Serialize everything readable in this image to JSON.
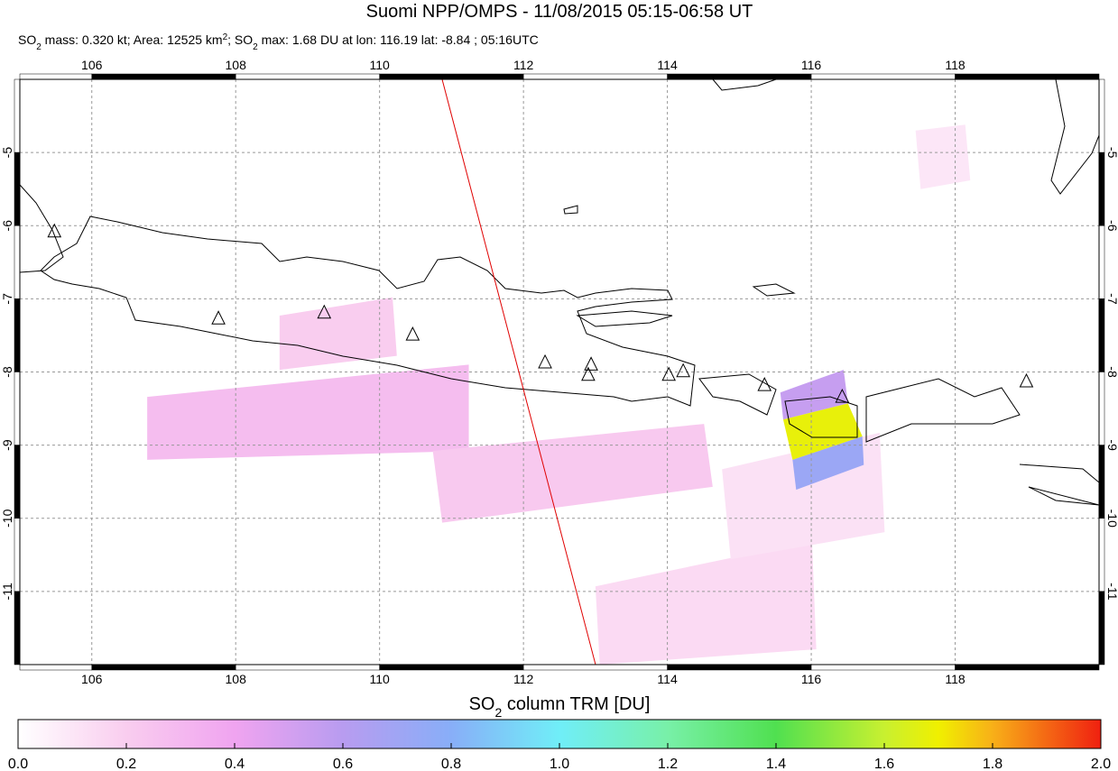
{
  "chart_data": {
    "type": "map",
    "title": "Suomi NPP/OMPS - 11/08/2015 05:15-06:58 UT",
    "subtitle": [
      "SO",
      "2",
      " mass: 0.320 kt; Area: 12525 km",
      "2",
      "; SO",
      "2",
      " max: 1.68 DU at lon: 116.19 lat: -8.84 ; 05:16UTC"
    ],
    "xlim": [
      105,
      120
    ],
    "ylim": [
      -12,
      -4
    ],
    "xticks": [
      106,
      108,
      110,
      112,
      114,
      116,
      118
    ],
    "yticks": [
      -5,
      -6,
      -7,
      -8,
      -9,
      -10,
      -11
    ],
    "grid": true,
    "pixels": [
      {
        "lon": [
          106.77,
          111.24,
          111.24,
          106.77
        ],
        "lat": [
          -8.34,
          -7.9,
          -9.08,
          -9.2
        ],
        "value": 0.28
      },
      {
        "lon": [
          108.61,
          110.18,
          110.24,
          108.61
        ],
        "lat": [
          -7.23,
          -6.98,
          -7.78,
          -7.97
        ],
        "value": 0.2
      },
      {
        "lon": [
          110.74,
          114.51,
          114.63,
          110.87
        ],
        "lat": [
          -9.08,
          -8.71,
          -9.57,
          -10.06
        ],
        "value": 0.22
      },
      {
        "lon": [
          117.45,
          118.14,
          118.21,
          117.52
        ],
        "lat": [
          -4.7,
          -4.62,
          -5.38,
          -5.5
        ],
        "value": 0.1
      },
      {
        "lon": [
          113.0,
          116.01,
          116.07,
          113.06
        ],
        "lat": [
          -10.93,
          -10.31,
          -11.79,
          -12.0
        ],
        "value": 0.15
      },
      {
        "lon": [
          114.76,
          116.95,
          117.02,
          114.88
        ],
        "lat": [
          -9.33,
          -8.83,
          -10.19,
          -10.56
        ],
        "value": 0.12
      },
      {
        "lon": [
          115.57,
          116.45,
          116.51,
          115.61
        ],
        "lat": [
          -8.28,
          -7.97,
          -8.43,
          -8.65
        ],
        "value": 0.55
      },
      {
        "lon": [
          115.74,
          116.71,
          116.73,
          115.79
        ],
        "lat": [
          -9.2,
          -8.88,
          -9.27,
          -9.61
        ],
        "value": 0.72
      },
      {
        "lon": [
          115.61,
          116.51,
          116.71,
          115.74
        ],
        "lat": [
          -8.65,
          -8.43,
          -8.88,
          -9.2
        ],
        "value": 1.68
      }
    ],
    "volcanoes": {
      "lon": [
        105.48,
        107.76,
        109.23,
        110.46,
        112.3,
        112.94,
        112.9,
        114.02,
        114.22,
        115.35,
        116.43,
        118.99
      ],
      "lat": [
        -6.08,
        -7.27,
        -7.19,
        -7.49,
        -7.87,
        -7.9,
        -8.04,
        -8.04,
        -7.99,
        -8.18,
        -8.34,
        -8.13
      ]
    },
    "colorbar": {
      "title": [
        "SO",
        "2",
        " column TRM [DU]"
      ],
      "lim": [
        0,
        2
      ],
      "ticks": [
        {
          "value": 0,
          "label": "0.0"
        },
        {
          "value": 0.2,
          "label": "0.2"
        },
        {
          "value": 0.4,
          "label": "0.4"
        },
        {
          "value": 0.6,
          "label": "0.6"
        },
        {
          "value": 0.8,
          "label": "0.8"
        },
        {
          "value": 1,
          "label": "1.0"
        },
        {
          "value": 1.2,
          "label": "1.2"
        },
        {
          "value": 1.4,
          "label": "1.4"
        },
        {
          "value": 1.6,
          "label": "1.6"
        },
        {
          "value": 1.8,
          "label": "1.8"
        },
        {
          "value": 2,
          "label": "2.0"
        }
      ],
      "stops": [
        0,
        0.2,
        0.4,
        0.6,
        0.8,
        1.0,
        1.2,
        1.4,
        1.6,
        1.7,
        1.8,
        2.0
      ],
      "colors": [
        "#ffffff",
        "#f9cdef",
        "#f0a4f0",
        "#b89cf0",
        "#88aef8",
        "#70eef8",
        "#78f0a8",
        "#50e050",
        "#c8f030",
        "#f0f000",
        "#f8b018",
        "#f02010"
      ]
    }
  }
}
